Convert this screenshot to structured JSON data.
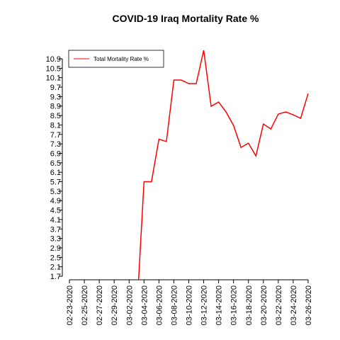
{
  "chart_data": {
    "type": "line",
    "title": "COVID-19 Iraq Mortality Rate %",
    "categories": [
      "02-23-2020",
      null,
      "02-25-2020",
      null,
      "02-27-2020",
      null,
      "02-29-2020",
      null,
      "03-02-2020",
      null,
      "03-04-2020",
      null,
      "03-06-2020",
      null,
      "03-08-2020",
      null,
      "03-10-2020",
      null,
      "03-12-2020",
      null,
      "03-14-2020",
      null,
      "03-16-2020",
      null,
      "03-18-2020",
      null,
      "03-20-2020",
      null,
      "03-22-2020",
      null,
      "03-24-2020",
      null,
      "03-26-2020"
    ],
    "series": [
      {
        "name": "Total Mortality Rate %",
        "color": "#ff0000",
        "values": [
          null,
          null,
          null,
          null,
          null,
          null,
          null,
          null,
          null,
          0,
          5.7,
          5.7,
          7.5,
          7.4,
          10.0,
          10.0,
          9.85,
          9.85,
          11.26,
          8.89,
          9.07,
          8.65,
          8.08,
          7.15,
          7.33,
          6.79,
          8.14,
          7.93,
          8.56,
          8.65,
          8.53,
          8.38,
          9.43
        ]
      }
    ],
    "ylim": [
      1.7,
      10.9
    ],
    "yticks": [
      1.7,
      2.1,
      2.5,
      2.9,
      3.3,
      3.7,
      4.1,
      4.5,
      4.9,
      5.3,
      5.7,
      6.1,
      6.5,
      6.9,
      7.3,
      7.7,
      8.1,
      8.5,
      8.9,
      9.3,
      9.7,
      10.1,
      10.5,
      10.9
    ],
    "legend": "top-left"
  }
}
